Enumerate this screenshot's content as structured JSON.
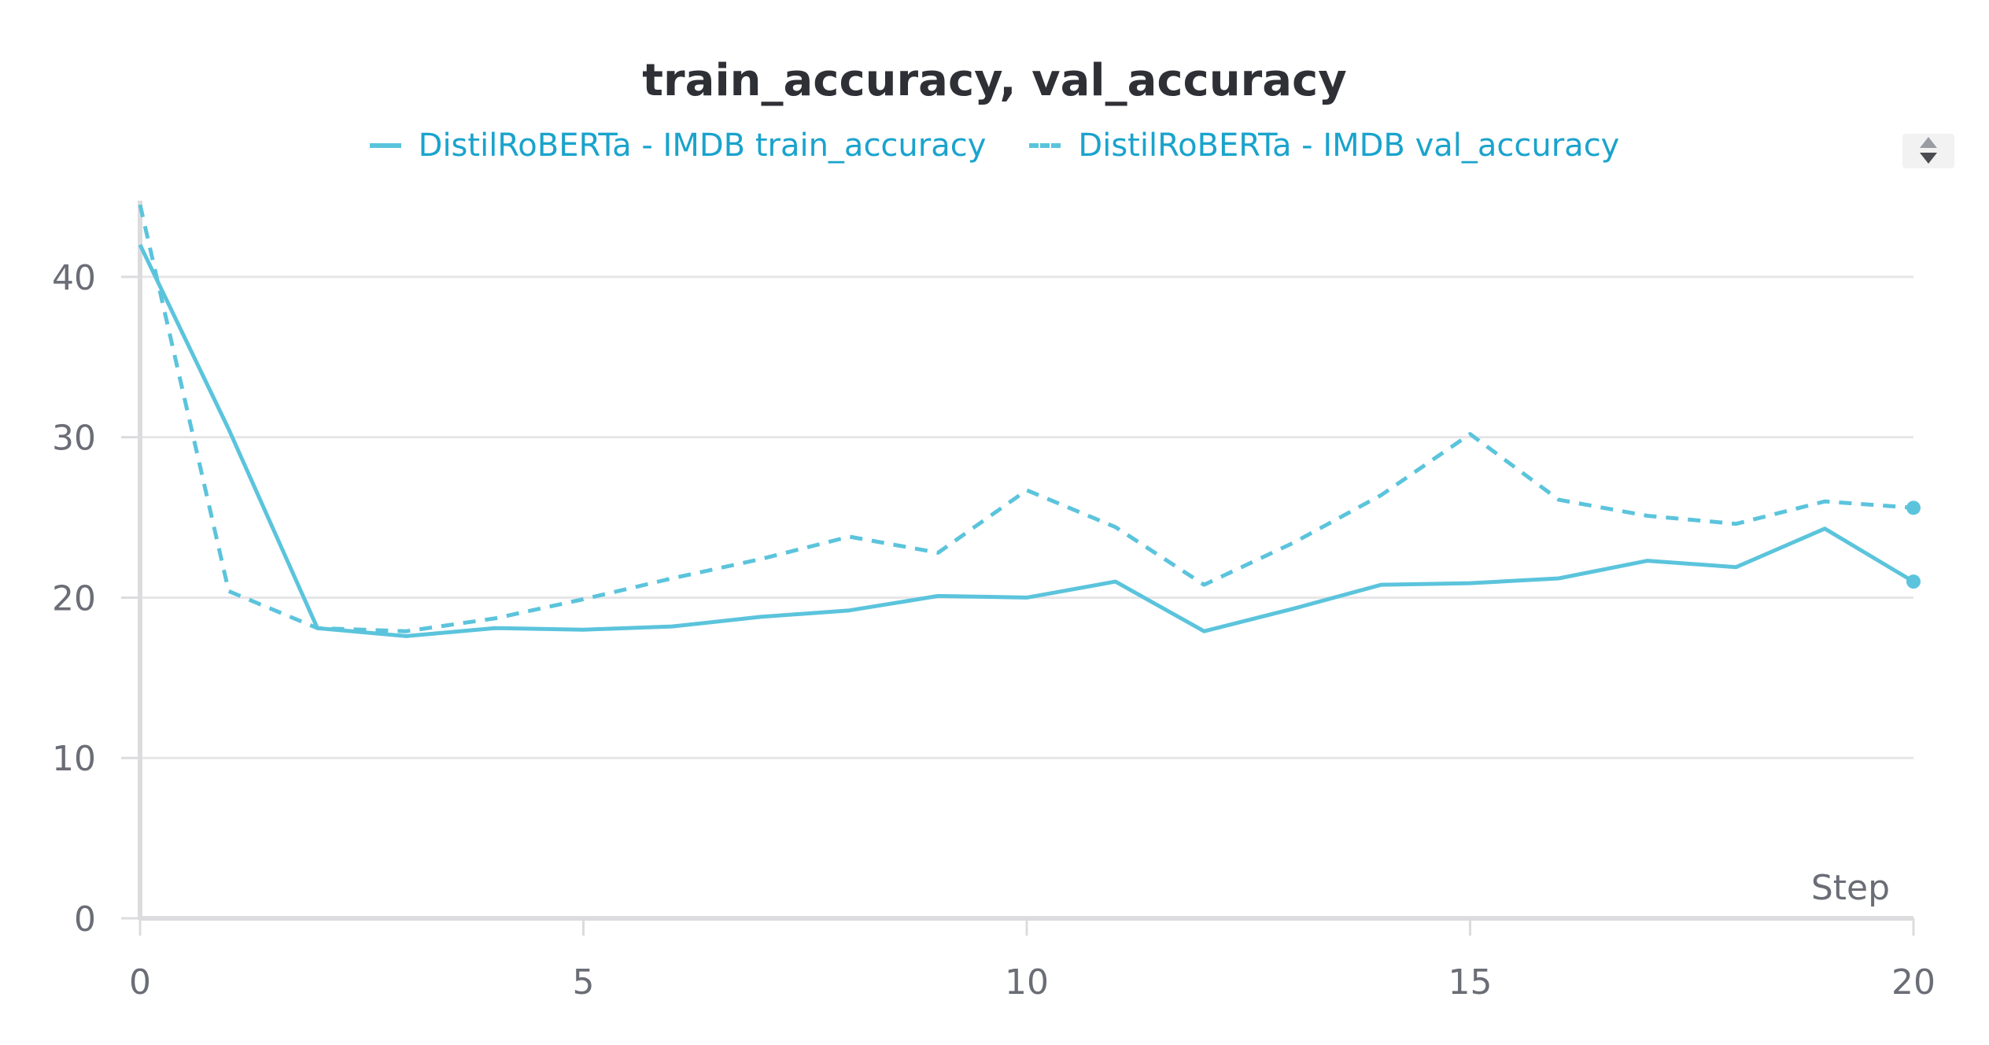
{
  "chart_data": {
    "type": "line",
    "title": "train_accuracy, val_accuracy",
    "xlabel": "Step",
    "ylabel": "",
    "xlim": [
      0,
      20
    ],
    "ylim": [
      0,
      45
    ],
    "x_ticks": [
      0,
      5,
      10,
      15,
      20
    ],
    "y_ticks": [
      0,
      10,
      20,
      30,
      40
    ],
    "grid": true,
    "legend_position": "top-center",
    "x": [
      0,
      1,
      2,
      3,
      4,
      5,
      6,
      7,
      8,
      9,
      10,
      11,
      12,
      13,
      14,
      15,
      16,
      17,
      18,
      19,
      20
    ],
    "series": [
      {
        "name": "DistilRoBERTa - IMDB train_accuracy",
        "style": "solid",
        "color": "#5bc4dc",
        "values": [
          42.0,
          30.5,
          18.1,
          17.6,
          18.1,
          18.0,
          18.2,
          18.8,
          19.2,
          20.1,
          20.0,
          21.0,
          17.9,
          19.3,
          20.8,
          20.9,
          21.2,
          22.3,
          21.9,
          24.3,
          21.0
        ]
      },
      {
        "name": "DistilRoBERTa - IMDB val_accuracy",
        "style": "dashed",
        "color": "#5bc4dc",
        "values": [
          44.5,
          20.4,
          18.1,
          17.9,
          18.7,
          19.9,
          21.2,
          22.4,
          23.8,
          22.8,
          26.7,
          24.4,
          20.8,
          23.4,
          26.4,
          30.2,
          26.1,
          25.1,
          24.6,
          26.0,
          25.6
        ]
      }
    ]
  },
  "ui": {
    "scroll_control": "sort-arrows-icon"
  }
}
